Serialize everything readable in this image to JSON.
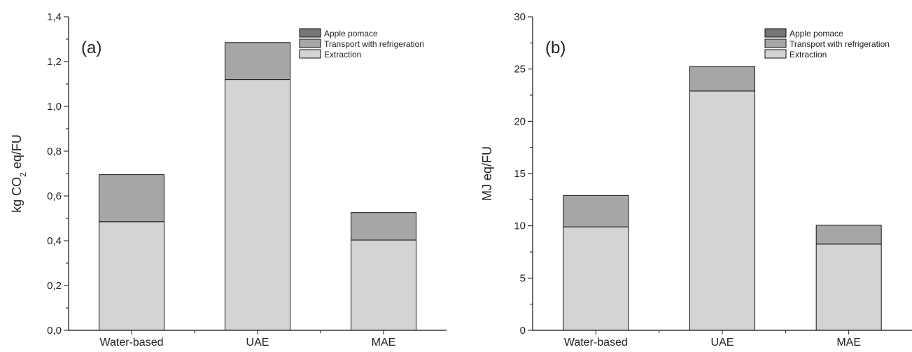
{
  "chart_data": [
    {
      "type": "bar",
      "stacked": true,
      "panel_label": "(a)",
      "categories": [
        "Water-based",
        "UAE",
        "MAE"
      ],
      "series": [
        {
          "name": "Extraction",
          "values": [
            0.485,
            1.12,
            0.403
          ],
          "color": "#d4d4d4"
        },
        {
          "name": "Transport with refrigeration",
          "values": [
            0.21,
            0.165,
            0.123
          ],
          "color": "#a6a6a6"
        },
        {
          "name": "Apple pomace",
          "values": [
            0,
            0,
            0
          ],
          "color": "#757575"
        }
      ],
      "ylabel_parts": [
        "kg CO",
        "2",
        " eq/FU"
      ],
      "ylim": [
        0,
        1.4
      ],
      "yticks": [
        0,
        0.2,
        0.4,
        0.6,
        0.8,
        1.0,
        1.2,
        1.4
      ],
      "ytick_labels": [
        "0,0",
        "0,2",
        "0,4",
        "0,6",
        "0,8",
        "1,0",
        "1,2",
        "1,4"
      ],
      "legend_position": "top-right",
      "grid": false
    },
    {
      "type": "bar",
      "stacked": true,
      "panel_label": "(b)",
      "categories": [
        "Water-based",
        "UAE",
        "MAE"
      ],
      "series": [
        {
          "name": "Extraction",
          "values": [
            9.9,
            22.9,
            8.25
          ],
          "color": "#d4d4d4"
        },
        {
          "name": "Transport with refrigeration",
          "values": [
            3.0,
            2.35,
            1.8
          ],
          "color": "#a6a6a6"
        },
        {
          "name": "Apple pomace",
          "values": [
            0,
            0,
            0
          ],
          "color": "#757575"
        }
      ],
      "ylabel_parts": [
        "MJ eq/FU"
      ],
      "ylim": [
        0,
        30
      ],
      "yticks": [
        0,
        5,
        10,
        15,
        20,
        25,
        30
      ],
      "ytick_labels": [
        "0",
        "5",
        "10",
        "15",
        "20",
        "25",
        "30"
      ],
      "legend_position": "top-right",
      "grid": false
    }
  ]
}
